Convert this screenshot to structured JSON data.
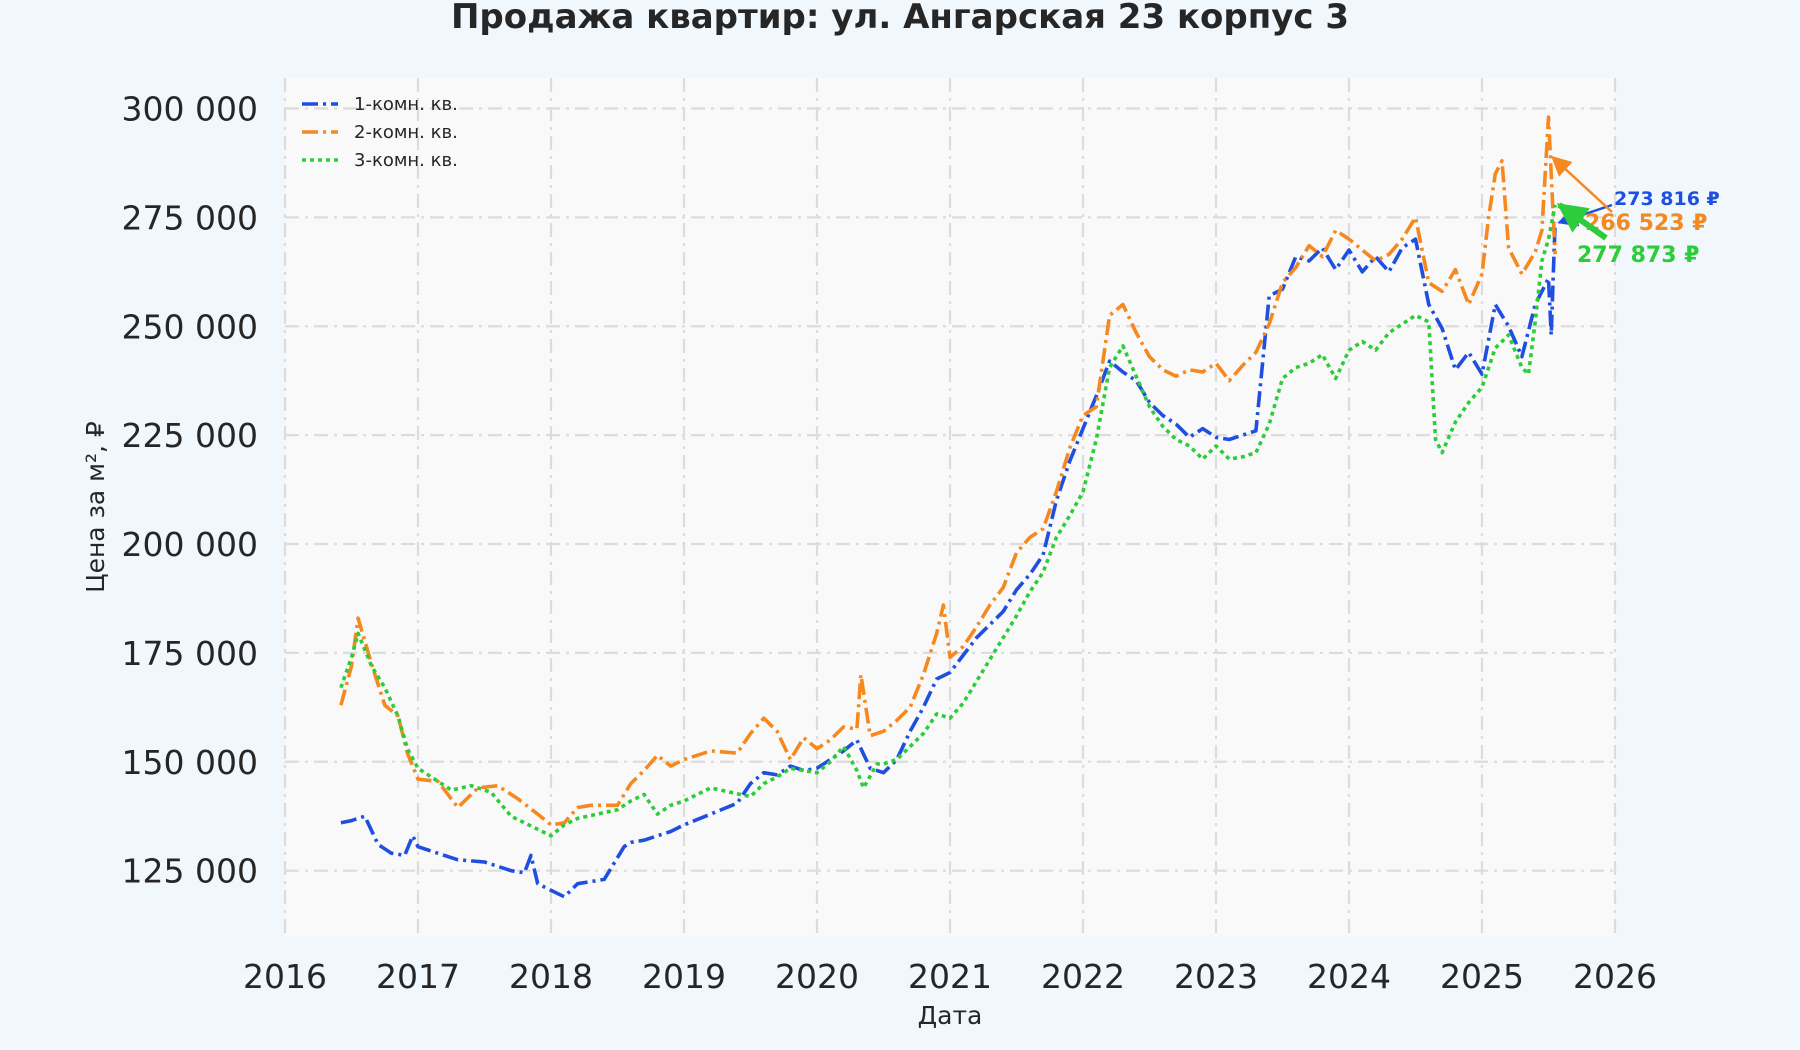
{
  "chart_data": {
    "type": "line",
    "title": "Продажа квартир: ул. Ангарская 23 корпус 3",
    "xlabel": "Дата",
    "ylabel": "Цена за м², ₽",
    "xlim": [
      2016,
      2026
    ],
    "ylim": [
      110000,
      307000
    ],
    "x_ticks": [
      "2016",
      "2017",
      "2018",
      "2019",
      "2020",
      "2021",
      "2022",
      "2023",
      "2024",
      "2025",
      "2026"
    ],
    "y_ticks": [
      "125 000",
      "150 000",
      "175 000",
      "200 000",
      "225 000",
      "250 000",
      "275 000",
      "300 000"
    ],
    "grid": true,
    "legend_position": "top-left",
    "series": [
      {
        "name": "1-комн. кв.",
        "color": "#1f4fe0",
        "x": [
          2016.42,
          2016.5,
          2016.6,
          2016.7,
          2016.8,
          2016.9,
          2016.96,
          2017.0,
          2017.1,
          2017.3,
          2017.5,
          2017.7,
          2017.8,
          2017.85,
          2017.9,
          2018.0,
          2018.1,
          2018.2,
          2018.3,
          2018.4,
          2018.5,
          2018.55,
          2018.6,
          2018.7,
          2018.8,
          2018.9,
          2019.0,
          2019.2,
          2019.4,
          2019.5,
          2019.6,
          2019.7,
          2019.8,
          2019.9,
          2020.0,
          2020.1,
          2020.2,
          2020.3,
          2020.4,
          2020.5,
          2020.6,
          2020.7,
          2020.8,
          2020.9,
          2021.0,
          2021.1,
          2021.2,
          2021.3,
          2021.4,
          2021.5,
          2021.6,
          2021.7,
          2021.8,
          2021.9,
          2022.0,
          2022.1,
          2022.2,
          2022.3,
          2022.4,
          2022.5,
          2022.6,
          2022.7,
          2022.8,
          2022.9,
          2023.0,
          2023.1,
          2023.2,
          2023.3,
          2023.4,
          2023.5,
          2023.6,
          2023.7,
          2023.8,
          2023.9,
          2024.0,
          2024.1,
          2024.2,
          2024.3,
          2024.4,
          2024.5,
          2024.6,
          2024.7,
          2024.8,
          2024.9,
          2025.0,
          2025.1,
          2025.2,
          2025.3,
          2025.4,
          2025.45,
          2025.5,
          2025.52,
          2025.55
        ],
        "values": [
          136000,
          136500,
          137500,
          131000,
          129000,
          128500,
          133000,
          130500,
          129500,
          127500,
          127000,
          125000,
          124500,
          128500,
          122000,
          120500,
          119000,
          122000,
          122500,
          123000,
          128000,
          130500,
          131500,
          132000,
          133000,
          134000,
          135500,
          138000,
          140500,
          145000,
          147500,
          147000,
          149000,
          148000,
          148500,
          150500,
          152500,
          155000,
          148500,
          147500,
          150500,
          157000,
          162500,
          169000,
          170500,
          174500,
          178500,
          181500,
          184500,
          189500,
          193000,
          197500,
          210000,
          219000,
          226500,
          234000,
          242000,
          239500,
          237500,
          232500,
          229500,
          227500,
          224500,
          226500,
          224500,
          224000,
          225000,
          226000,
          257000,
          258500,
          266000,
          265000,
          268000,
          263000,
          267500,
          262500,
          266000,
          262500,
          268000,
          270000,
          255000,
          249500,
          240000,
          244000,
          239000,
          255000,
          250000,
          243000,
          255000,
          258000,
          261000,
          248000,
          273816
        ]
      },
      {
        "name": "2-комн. кв.",
        "color": "#f5891f",
        "x": [
          2016.42,
          2016.5,
          2016.55,
          2016.65,
          2016.75,
          2016.85,
          2016.92,
          2017.0,
          2017.15,
          2017.3,
          2017.45,
          2017.6,
          2017.75,
          2017.9,
          2018.0,
          2018.1,
          2018.2,
          2018.3,
          2018.5,
          2018.6,
          2018.7,
          2018.8,
          2018.9,
          2019.0,
          2019.2,
          2019.4,
          2019.5,
          2019.6,
          2019.7,
          2019.8,
          2019.9,
          2020.0,
          2020.1,
          2020.2,
          2020.3,
          2020.33,
          2020.4,
          2020.5,
          2020.6,
          2020.7,
          2020.8,
          2020.9,
          2020.95,
          2021.0,
          2021.1,
          2021.2,
          2021.3,
          2021.4,
          2021.5,
          2021.6,
          2021.7,
          2021.8,
          2021.9,
          2022.0,
          2022.1,
          2022.2,
          2022.3,
          2022.4,
          2022.5,
          2022.6,
          2022.7,
          2022.8,
          2022.9,
          2023.0,
          2023.1,
          2023.2,
          2023.3,
          2023.4,
          2023.5,
          2023.6,
          2023.7,
          2023.8,
          2023.9,
          2024.0,
          2024.1,
          2024.2,
          2024.3,
          2024.4,
          2024.5,
          2024.6,
          2024.7,
          2024.8,
          2024.9,
          2025.0,
          2025.05,
          2025.1,
          2025.15,
          2025.2,
          2025.3,
          2025.4,
          2025.45,
          2025.5,
          2025.55
        ],
        "values": [
          163000,
          172000,
          183000,
          172500,
          163000,
          160500,
          152000,
          146000,
          145500,
          139500,
          144000,
          144500,
          141500,
          138000,
          135500,
          136000,
          139500,
          140000,
          140000,
          145000,
          148000,
          151500,
          149000,
          150500,
          152500,
          152000,
          156500,
          160000,
          157000,
          150500,
          155500,
          153000,
          155000,
          158000,
          157500,
          170000,
          156000,
          157000,
          159500,
          162500,
          170000,
          179500,
          186000,
          174000,
          176500,
          181000,
          186000,
          190000,
          198000,
          201500,
          203500,
          212000,
          222000,
          229500,
          231500,
          252500,
          255000,
          248500,
          243000,
          240000,
          238500,
          240000,
          239500,
          241500,
          237500,
          241000,
          244000,
          250500,
          260000,
          263500,
          268500,
          266000,
          272000,
          270000,
          267500,
          265000,
          266500,
          270000,
          275000,
          260000,
          258000,
          263000,
          255000,
          262000,
          275000,
          285000,
          288000,
          268000,
          262000,
          267000,
          272000,
          298000,
          266523
        ]
      },
      {
        "name": "3-комн. кв.",
        "color": "#2dcc3a",
        "x": [
          2016.42,
          2016.5,
          2016.55,
          2016.65,
          2016.75,
          2016.85,
          2016.92,
          2017.0,
          2017.1,
          2017.25,
          2017.4,
          2017.55,
          2017.7,
          2017.8,
          2017.9,
          2018.0,
          2018.1,
          2018.2,
          2018.35,
          2018.5,
          2018.6,
          2018.7,
          2018.8,
          2018.9,
          2019.0,
          2019.2,
          2019.35,
          2019.5,
          2019.6,
          2019.7,
          2019.8,
          2019.9,
          2020.0,
          2020.1,
          2020.2,
          2020.3,
          2020.35,
          2020.45,
          2020.5,
          2020.6,
          2020.7,
          2020.8,
          2020.9,
          2021.0,
          2021.1,
          2021.2,
          2021.3,
          2021.4,
          2021.5,
          2021.6,
          2021.7,
          2021.8,
          2021.9,
          2022.0,
          2022.1,
          2022.2,
          2022.3,
          2022.4,
          2022.5,
          2022.6,
          2022.7,
          2022.8,
          2022.9,
          2023.0,
          2023.1,
          2023.2,
          2023.3,
          2023.4,
          2023.5,
          2023.6,
          2023.7,
          2023.8,
          2023.9,
          2024.0,
          2024.1,
          2024.2,
          2024.3,
          2024.4,
          2024.5,
          2024.6,
          2024.65,
          2024.7,
          2024.8,
          2024.9,
          2025.0,
          2025.1,
          2025.2,
          2025.3,
          2025.35,
          2025.4,
          2025.45,
          2025.5,
          2025.55
        ],
        "values": [
          167000,
          174000,
          179500,
          172000,
          167000,
          160500,
          153000,
          148500,
          146500,
          143500,
          144500,
          143000,
          137500,
          136000,
          134500,
          133000,
          135500,
          137000,
          138000,
          139000,
          141000,
          142500,
          138000,
          140000,
          141000,
          144000,
          143000,
          142000,
          145000,
          146500,
          148500,
          148000,
          147500,
          150000,
          153500,
          148000,
          144000,
          149500,
          149500,
          150500,
          153500,
          156500,
          161000,
          160000,
          163500,
          168500,
          173500,
          178500,
          183500,
          189000,
          193500,
          201500,
          206500,
          212000,
          224000,
          240500,
          245500,
          238500,
          231500,
          227000,
          224000,
          222500,
          219500,
          222500,
          219500,
          220000,
          221000,
          227500,
          238000,
          240500,
          241500,
          243500,
          238000,
          244500,
          246500,
          244500,
          248500,
          250500,
          252500,
          251000,
          224000,
          221000,
          228000,
          232500,
          236000,
          245000,
          248000,
          240500,
          239000,
          251000,
          265000,
          270000,
          277873
        ]
      }
    ],
    "annotations": [
      {
        "text": "273 816 ₽",
        "color": "#1f4fe0",
        "series": 0
      },
      {
        "text": "266 523 ₽",
        "color": "#f5891f",
        "series": 1
      },
      {
        "text": "277 873 ₽",
        "color": "#2dcc3a",
        "series": 2
      }
    ]
  }
}
